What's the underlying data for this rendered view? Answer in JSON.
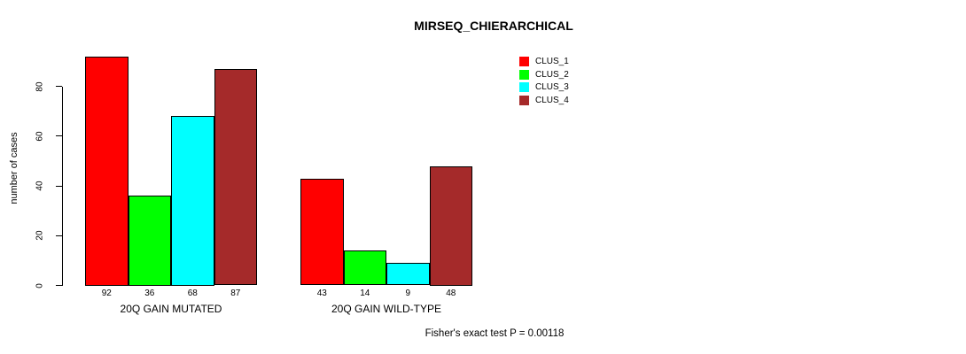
{
  "title": "MIRSEQ_CHIERARCHICAL",
  "chart_data": {
    "type": "bar",
    "title": "MIRSEQ_CHIERARCHICAL",
    "xlabel": "",
    "ylabel": "number of cases",
    "categories": [
      "20Q GAIN MUTATED",
      "20Q GAIN WILD-TYPE"
    ],
    "series": [
      {
        "name": "CLUS_1",
        "color": "#FF0000",
        "values": [
          92,
          43
        ]
      },
      {
        "name": "CLUS_2",
        "color": "#00FF00",
        "values": [
          36,
          14
        ]
      },
      {
        "name": "CLUS_3",
        "color": "#00FFFF",
        "values": [
          68,
          9
        ]
      },
      {
        "name": "CLUS_4",
        "color": "#A52A2A",
        "values": [
          87,
          48
        ]
      }
    ],
    "y_ticks": [
      0,
      20,
      40,
      60,
      80
    ],
    "ylim": [
      0,
      95
    ],
    "grid": false,
    "bar_value_labels": true,
    "legend_position": "top-right",
    "legend_entries": [
      "CLUS_1",
      "CLUS_2",
      "CLUS_3",
      "CLUS_4"
    ],
    "annotation": "Fisher's exact test P = 0.00118"
  }
}
